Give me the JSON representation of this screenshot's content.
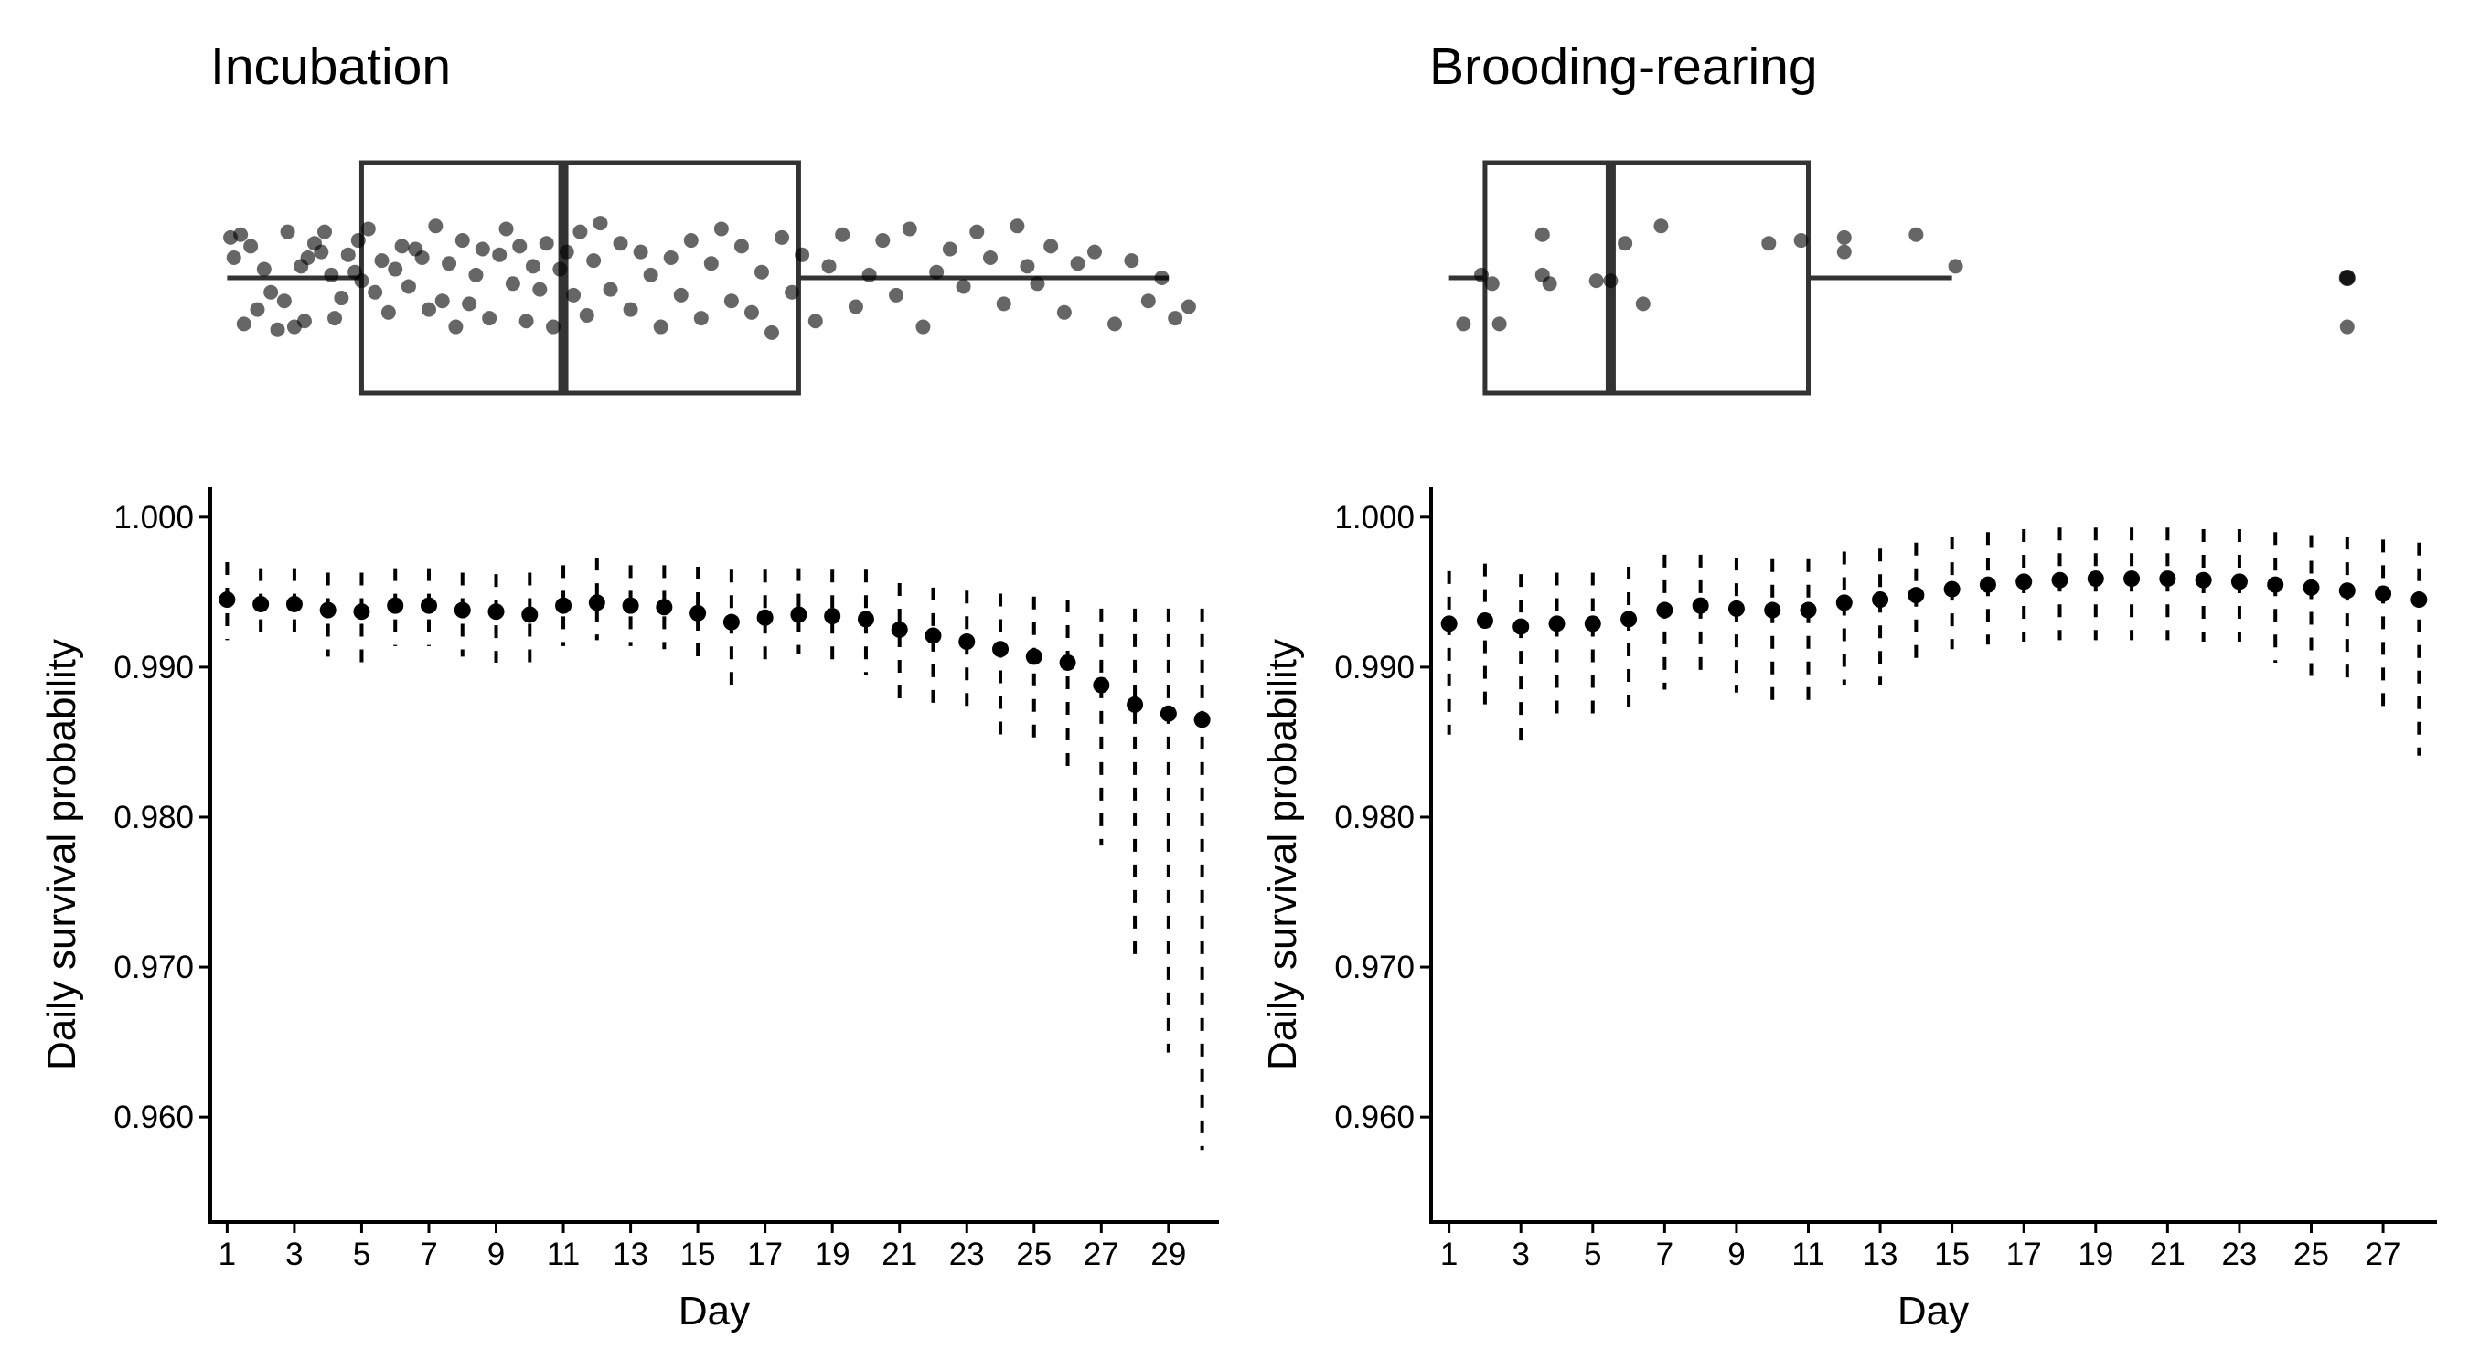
{
  "chart_data": [
    {
      "type": "scatter",
      "panel": "Incubation",
      "title": "Incubation",
      "xlabel": "Day",
      "ylabel": "Daily survival probability",
      "xlim": [
        0.5,
        30.5
      ],
      "ylim": [
        0.953,
        1.002
      ],
      "x_ticks": [
        "1",
        "3",
        "5",
        "7",
        "9",
        "11",
        "13",
        "15",
        "17",
        "19",
        "21",
        "23",
        "25",
        "27",
        "29"
      ],
      "y_ticks": [
        "1.000",
        "0.990",
        "0.980",
        "0.970",
        "0.960"
      ],
      "grid": false,
      "estimates": {
        "x": [
          1,
          2,
          3,
          4,
          5,
          6,
          7,
          8,
          9,
          10,
          11,
          12,
          13,
          14,
          15,
          16,
          17,
          18,
          19,
          20,
          21,
          22,
          23,
          24,
          25,
          26,
          27,
          28,
          29,
          30
        ],
        "y": [
          0.9945,
          0.9942,
          0.9942,
          0.9938,
          0.9937,
          0.9941,
          0.9941,
          0.9938,
          0.9937,
          0.9935,
          0.9941,
          0.9943,
          0.9941,
          0.994,
          0.9936,
          0.993,
          0.9933,
          0.9935,
          0.9934,
          0.9932,
          0.9925,
          0.9921,
          0.9917,
          0.9912,
          0.9907,
          0.9903,
          0.9888,
          0.9875,
          0.9869,
          0.9865
        ],
        "lower": [
          0.9918,
          0.9916,
          0.9916,
          0.9907,
          0.9903,
          0.9914,
          0.9914,
          0.9907,
          0.9903,
          0.9903,
          0.9914,
          0.9918,
          0.9914,
          0.9912,
          0.9907,
          0.9882,
          0.9905,
          0.9909,
          0.99,
          0.9895,
          0.9878,
          0.9875,
          0.9868,
          0.9852,
          0.9845,
          0.9828,
          0.9781,
          0.9706,
          0.9643,
          0.9578
        ],
        "upper": [
          0.997,
          0.9966,
          0.9966,
          0.9963,
          0.9963,
          0.9966,
          0.9966,
          0.9963,
          0.9962,
          0.9963,
          0.9968,
          0.9973,
          0.9968,
          0.9968,
          0.9967,
          0.9965,
          0.9965,
          0.9966,
          0.9965,
          0.9965,
          0.9956,
          0.9953,
          0.9951,
          0.9949,
          0.9947,
          0.9945,
          0.9939,
          0.9939,
          0.9939,
          0.9939
        ]
      },
      "distribution": {
        "box": {
          "min": 1,
          "q1": 5,
          "median": 11,
          "q3": 18,
          "max": 29
        },
        "points": [
          {
            "day": 1.1,
            "j": 0.7
          },
          {
            "day": 1.2,
            "j": 0.35
          },
          {
            "day": 1.5,
            "j": -0.8
          },
          {
            "day": 1.7,
            "j": 0.55
          },
          {
            "day": 1.9,
            "j": -0.55
          },
          {
            "day": 2.1,
            "j": 0.15
          },
          {
            "day": 2.3,
            "j": -0.25
          },
          {
            "day": 2.5,
            "j": -0.9
          },
          {
            "day": 1.4,
            "j": 0.75
          },
          {
            "day": 2.7,
            "j": -0.4
          },
          {
            "day": 2.8,
            "j": 0.8
          },
          {
            "day": 3.0,
            "j": -0.85
          },
          {
            "day": 3.2,
            "j": 0.2
          },
          {
            "day": 3.3,
            "j": -0.75
          },
          {
            "day": 3.4,
            "j": 0.35
          },
          {
            "day": 3.6,
            "j": 0.6
          },
          {
            "day": 3.8,
            "j": 0.45
          },
          {
            "day": 3.9,
            "j": 0.8
          },
          {
            "day": 4.1,
            "j": 0.05
          },
          {
            "day": 4.2,
            "j": -0.7
          },
          {
            "day": 4.4,
            "j": -0.35
          },
          {
            "day": 4.6,
            "j": 0.4
          },
          {
            "day": 4.8,
            "j": 0.1
          },
          {
            "day": 5.0,
            "j": -0.05
          },
          {
            "day": 4.9,
            "j": 0.65
          },
          {
            "day": 5.2,
            "j": 0.85
          },
          {
            "day": 5.4,
            "j": -0.25
          },
          {
            "day": 5.6,
            "j": 0.3
          },
          {
            "day": 5.8,
            "j": -0.6
          },
          {
            "day": 6.0,
            "j": 0.15
          },
          {
            "day": 6.2,
            "j": 0.55
          },
          {
            "day": 6.4,
            "j": -0.15
          },
          {
            "day": 6.6,
            "j": 0.5
          },
          {
            "day": 6.8,
            "j": 0.35
          },
          {
            "day": 7.0,
            "j": -0.55
          },
          {
            "day": 7.2,
            "j": 0.9
          },
          {
            "day": 7.4,
            "j": -0.4
          },
          {
            "day": 7.6,
            "j": 0.25
          },
          {
            "day": 7.8,
            "j": -0.85
          },
          {
            "day": 8.0,
            "j": 0.65
          },
          {
            "day": 8.2,
            "j": -0.45
          },
          {
            "day": 8.4,
            "j": 0.05
          },
          {
            "day": 8.6,
            "j": 0.5
          },
          {
            "day": 8.8,
            "j": -0.7
          },
          {
            "day": 9.1,
            "j": 0.4
          },
          {
            "day": 9.3,
            "j": 0.85
          },
          {
            "day": 9.5,
            "j": -0.1
          },
          {
            "day": 9.7,
            "j": 0.55
          },
          {
            "day": 9.9,
            "j": -0.75
          },
          {
            "day": 10.1,
            "j": 0.2
          },
          {
            "day": 10.3,
            "j": -0.2
          },
          {
            "day": 10.5,
            "j": 0.6
          },
          {
            "day": 10.7,
            "j": -0.85
          },
          {
            "day": 10.9,
            "j": 0.15
          },
          {
            "day": 11.1,
            "j": 0.45
          },
          {
            "day": 11.3,
            "j": -0.3
          },
          {
            "day": 11.5,
            "j": 0.8
          },
          {
            "day": 11.7,
            "j": -0.65
          },
          {
            "day": 11.9,
            "j": 0.3
          },
          {
            "day": 12.1,
            "j": 0.95
          },
          {
            "day": 12.4,
            "j": -0.2
          },
          {
            "day": 12.7,
            "j": 0.6
          },
          {
            "day": 13.0,
            "j": -0.55
          },
          {
            "day": 13.3,
            "j": 0.45
          },
          {
            "day": 13.6,
            "j": 0.05
          },
          {
            "day": 13.9,
            "j": -0.85
          },
          {
            "day": 14.2,
            "j": 0.35
          },
          {
            "day": 14.5,
            "j": -0.3
          },
          {
            "day": 14.8,
            "j": 0.65
          },
          {
            "day": 15.1,
            "j": -0.7
          },
          {
            "day": 15.4,
            "j": 0.25
          },
          {
            "day": 15.7,
            "j": 0.85
          },
          {
            "day": 16.0,
            "j": -0.4
          },
          {
            "day": 16.3,
            "j": 0.55
          },
          {
            "day": 16.6,
            "j": -0.6
          },
          {
            "day": 16.9,
            "j": 0.1
          },
          {
            "day": 17.2,
            "j": -0.95
          },
          {
            "day": 17.5,
            "j": 0.7
          },
          {
            "day": 17.8,
            "j": -0.25
          },
          {
            "day": 18.1,
            "j": 0.4
          },
          {
            "day": 18.5,
            "j": -0.75
          },
          {
            "day": 18.9,
            "j": 0.2
          },
          {
            "day": 19.3,
            "j": 0.75
          },
          {
            "day": 19.7,
            "j": -0.5
          },
          {
            "day": 20.1,
            "j": 0.05
          },
          {
            "day": 20.5,
            "j": 0.65
          },
          {
            "day": 20.9,
            "j": -0.3
          },
          {
            "day": 21.3,
            "j": 0.85
          },
          {
            "day": 21.7,
            "j": -0.85
          },
          {
            "day": 22.1,
            "j": 0.1
          },
          {
            "day": 22.5,
            "j": 0.5
          },
          {
            "day": 22.9,
            "j": -0.15
          },
          {
            "day": 23.3,
            "j": 0.8
          },
          {
            "day": 23.7,
            "j": 0.35
          },
          {
            "day": 24.1,
            "j": -0.45
          },
          {
            "day": 24.5,
            "j": 0.9
          },
          {
            "day": 24.8,
            "j": 0.2
          },
          {
            "day": 25.1,
            "j": -0.1
          },
          {
            "day": 25.5,
            "j": 0.55
          },
          {
            "day": 25.9,
            "j": -0.6
          },
          {
            "day": 26.3,
            "j": 0.25
          },
          {
            "day": 26.8,
            "j": 0.45
          },
          {
            "day": 27.4,
            "j": -0.8
          },
          {
            "day": 27.9,
            "j": 0.3
          },
          {
            "day": 28.4,
            "j": -0.4
          },
          {
            "day": 28.8,
            "j": 0.0
          },
          {
            "day": 29.2,
            "j": -0.7
          },
          {
            "day": 29.6,
            "j": -0.5
          }
        ]
      }
    },
    {
      "type": "scatter",
      "panel": "Brooding-rearing",
      "title": "Brooding-rearing",
      "xlabel": "Day",
      "ylabel": "Daily survival probability",
      "xlim": [
        0.5,
        28.5
      ],
      "ylim": [
        0.953,
        1.002
      ],
      "x_ticks": [
        "1",
        "3",
        "5",
        "7",
        "9",
        "11",
        "13",
        "15",
        "17",
        "19",
        "21",
        "23",
        "25",
        "27"
      ],
      "y_ticks": [
        "1.000",
        "0.990",
        "0.980",
        "0.970",
        "0.960"
      ],
      "grid": false,
      "estimates": {
        "x": [
          1,
          2,
          3,
          4,
          5,
          6,
          7,
          8,
          9,
          10,
          11,
          12,
          13,
          14,
          15,
          16,
          17,
          18,
          19,
          20,
          21,
          22,
          23,
          24,
          25,
          26,
          27,
          28
        ],
        "y": [
          0.9929,
          0.9931,
          0.9927,
          0.9929,
          0.9929,
          0.9932,
          0.9938,
          0.9941,
          0.9939,
          0.9938,
          0.9938,
          0.9943,
          0.9945,
          0.9948,
          0.9952,
          0.9955,
          0.9957,
          0.9958,
          0.9959,
          0.9959,
          0.9959,
          0.9958,
          0.9957,
          0.9955,
          0.9953,
          0.9951,
          0.9949,
          0.9945
        ],
        "lower": [
          0.9855,
          0.987,
          0.985,
          0.9865,
          0.9863,
          0.9867,
          0.9885,
          0.989,
          0.9883,
          0.9878,
          0.9875,
          0.9888,
          0.9888,
          0.9905,
          0.9912,
          0.9915,
          0.9917,
          0.9918,
          0.9918,
          0.9918,
          0.9918,
          0.9917,
          0.9917,
          0.9903,
          0.9892,
          0.9888,
          0.9873,
          0.9841
        ],
        "upper": [
          0.9964,
          0.9969,
          0.9962,
          0.9963,
          0.9963,
          0.9967,
          0.9975,
          0.9975,
          0.9973,
          0.9972,
          0.9972,
          0.9977,
          0.9979,
          0.9983,
          0.9987,
          0.999,
          0.9992,
          0.9993,
          0.9993,
          0.9993,
          0.9993,
          0.9992,
          0.9992,
          0.999,
          0.9988,
          0.9987,
          0.9985,
          0.9983
        ]
      },
      "distribution": {
        "box": {
          "min": 1,
          "q1": 2,
          "median": 5.5,
          "q3": 11,
          "max": 15
        },
        "outliers": [
          26
        ],
        "points": [
          {
            "day": 1.4,
            "j": -0.8
          },
          {
            "day": 1.9,
            "j": 0.05
          },
          {
            "day": 2.2,
            "j": -0.1
          },
          {
            "day": 2.4,
            "j": -0.8
          },
          {
            "day": 3.6,
            "j": 0.75
          },
          {
            "day": 3.6,
            "j": 0.05
          },
          {
            "day": 3.8,
            "j": -0.1
          },
          {
            "day": 5.1,
            "j": -0.05
          },
          {
            "day": 5.5,
            "j": -0.05
          },
          {
            "day": 5.9,
            "j": 0.6
          },
          {
            "day": 6.4,
            "j": -0.45
          },
          {
            "day": 6.9,
            "j": 0.9
          },
          {
            "day": 9.9,
            "j": 0.6
          },
          {
            "day": 10.8,
            "j": 0.65
          },
          {
            "day": 12.0,
            "j": 0.7
          },
          {
            "day": 12.0,
            "j": 0.45
          },
          {
            "day": 14.0,
            "j": 0.75
          },
          {
            "day": 15.1,
            "j": 0.2
          },
          {
            "day": 26.0,
            "j": 0.0
          },
          {
            "day": 26.0,
            "j": -0.85
          }
        ]
      }
    }
  ]
}
